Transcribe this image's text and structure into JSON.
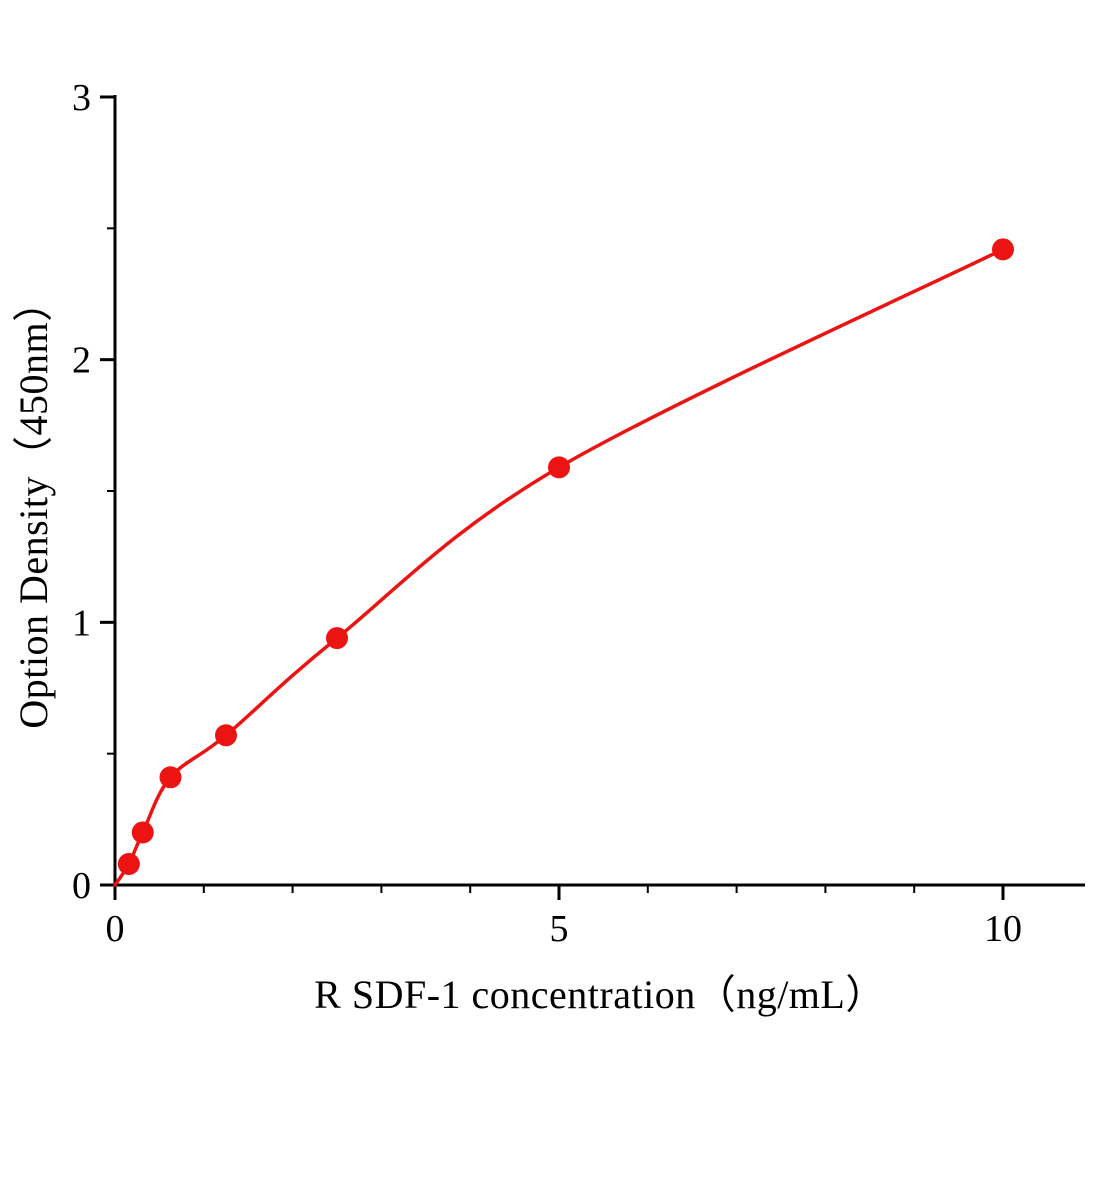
{
  "chart_data": {
    "type": "scatter",
    "title": "",
    "xlabel": "R SDF-1 concentration（ng/mL）",
    "ylabel": "Option Density（450nm）",
    "x": [
      0.156,
      0.3125,
      0.625,
      1.25,
      2.5,
      5,
      10
    ],
    "y": [
      0.08,
      0.2,
      0.41,
      0.57,
      0.94,
      1.59,
      2.42
    ],
    "curve_start": {
      "x": 0,
      "y": 0
    },
    "xlim": [
      0,
      10.9
    ],
    "ylim": [
      0,
      3
    ],
    "x_major_ticks": [
      0,
      5,
      10
    ],
    "x_major_tick_labels": [
      "0",
      "5",
      "10"
    ],
    "y_major_ticks": [
      0,
      1,
      2,
      3
    ],
    "y_major_tick_labels": [
      "0",
      "1",
      "2",
      "3"
    ],
    "x_minor_step": 1,
    "y_minor_step": 0.5,
    "grid": "off",
    "legend": "none",
    "series_color": "#ec1313",
    "axis_color": "#000000"
  }
}
